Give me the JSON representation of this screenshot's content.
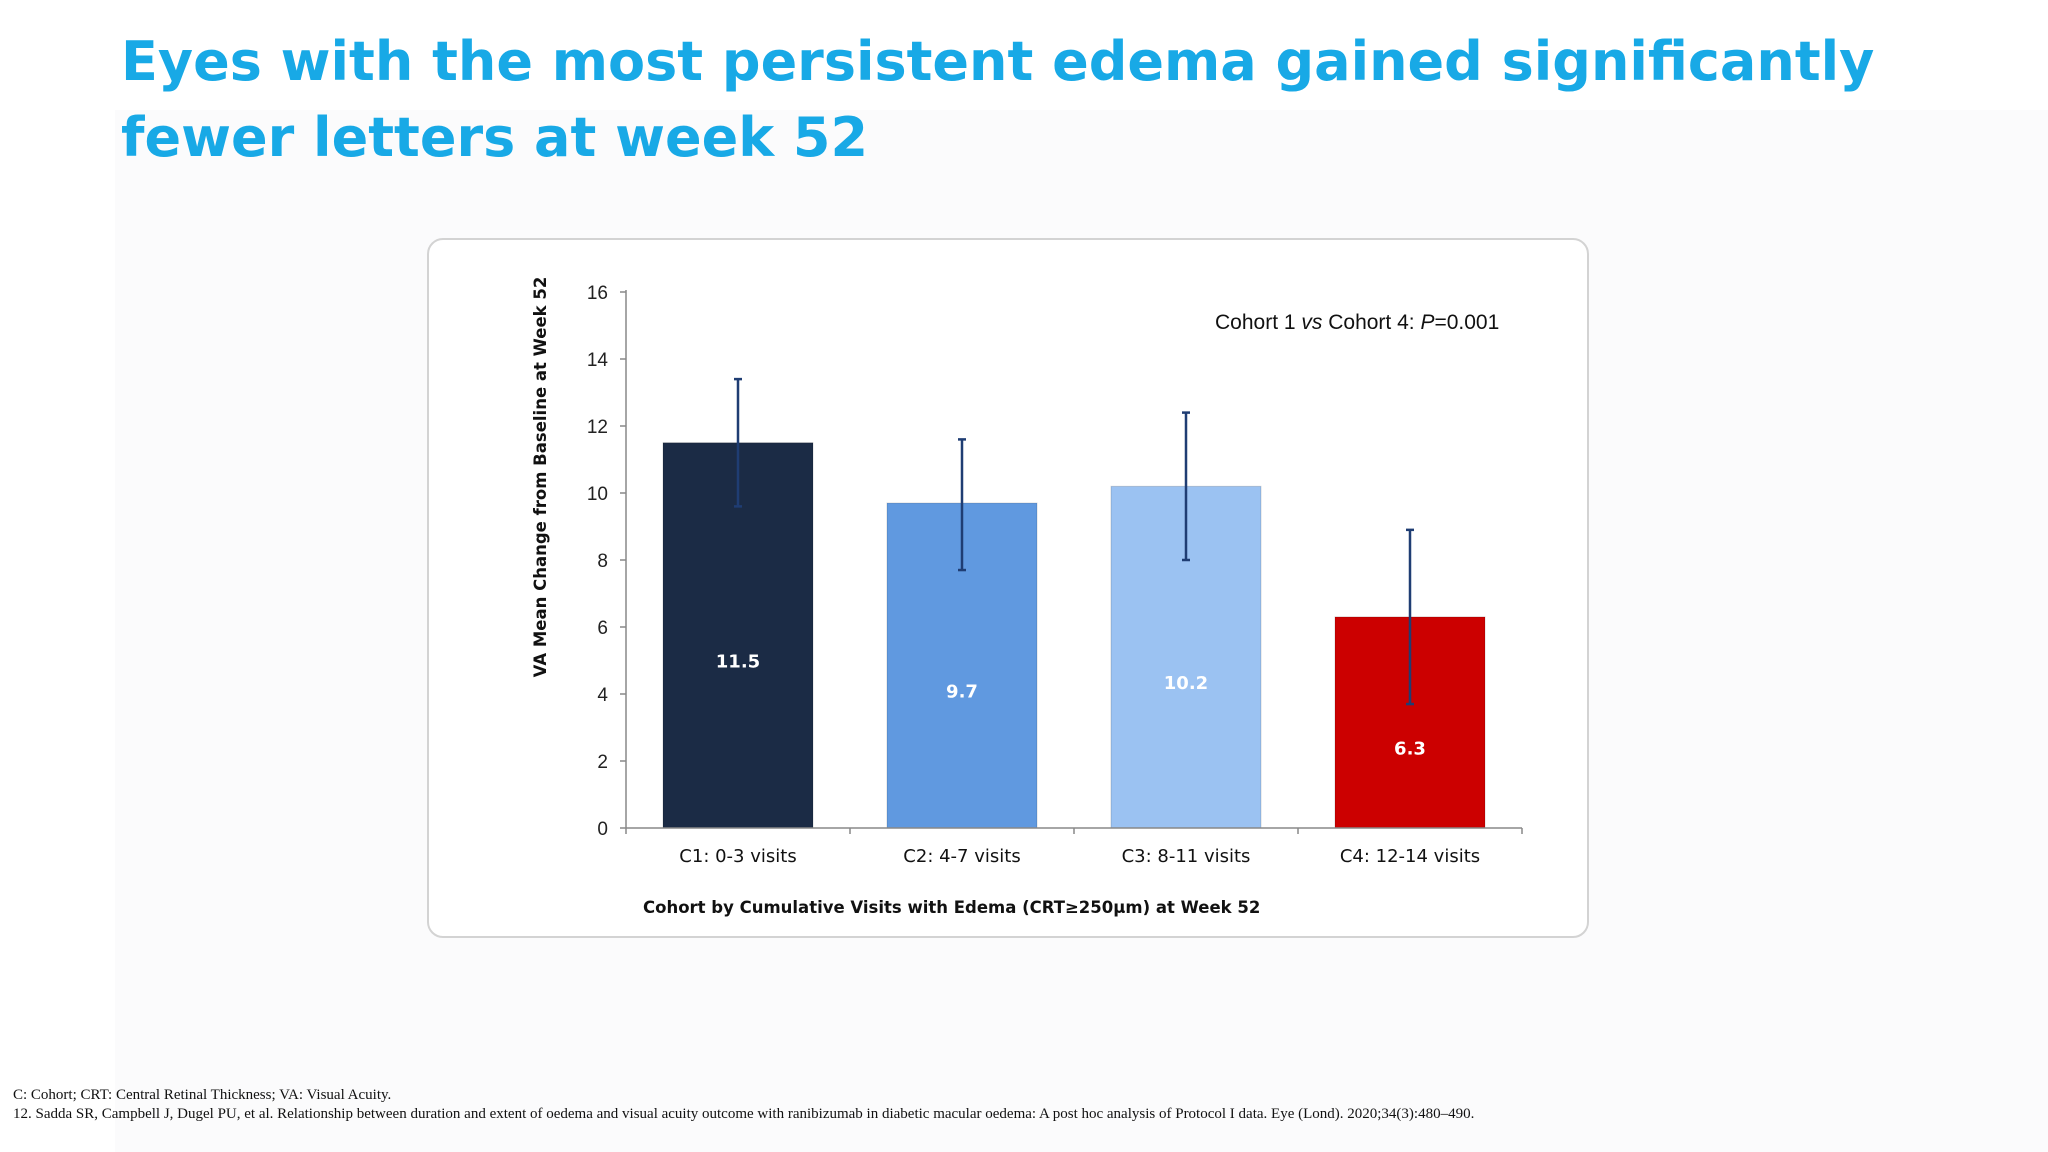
{
  "slide": {
    "title": "Eyes with the most persistent edema gained significantly fewer letters at week 52",
    "footnotes": [
      "C: Cohort; CRT: Central Retinal Thickness; VA: Visual Acuity.",
      "12. Sadda SR, Campbell J, Dugel PU, et al. Relationship between duration and extent of oedema and visual acuity outcome with ranibizumab in diabetic macular oedema: A post hoc analysis of Protocol I data. Eye (Lond). 2020;34(3):480–490."
    ]
  },
  "chart_data": {
    "type": "bar",
    "title": "",
    "categories": [
      "C1: 0-3 visits",
      "C2: 4-7 visits",
      "C3: 8-11 visits",
      "C4: 12-14 visits"
    ],
    "values": [
      11.5,
      9.7,
      10.2,
      6.3
    ],
    "value_labels": [
      "11.5",
      "9.7",
      "10.2",
      "6.3"
    ],
    "error_low": [
      9.6,
      7.7,
      8.0,
      3.7
    ],
    "error_high": [
      13.4,
      11.6,
      12.4,
      8.9
    ],
    "colors": [
      "#1b2b45",
      "#6099e0",
      "#9bc2f2",
      "#cc0000"
    ],
    "error_bar_color": "#1f3d73",
    "xlabel": "Cohort by Cumulative Visits with Edema (CRT≥250µm) at Week 52",
    "ylabel": "VA Mean Change from Baseline at Week 52",
    "ylim": [
      0,
      16
    ],
    "yticks": [
      0,
      2,
      4,
      6,
      8,
      10,
      12,
      14,
      16
    ],
    "grid": false,
    "annotation": {
      "prefix": "Cohort 1 ",
      "vs": "vs",
      "middle": " Cohort 4: ",
      "p": "P",
      "suffix": "=0.001"
    }
  }
}
